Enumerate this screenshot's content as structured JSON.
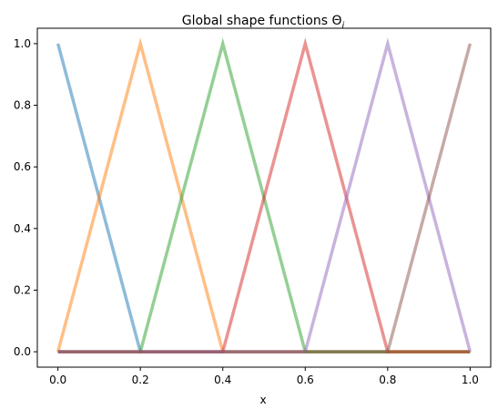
{
  "chart_data": {
    "type": "line",
    "title": "Global shape functions",
    "title_symbol": "Θ",
    "title_subscript": "i",
    "xlabel": "x",
    "ylabel": "",
    "xlim": [
      -0.05,
      1.05
    ],
    "ylim": [
      -0.05,
      1.05
    ],
    "x_ticks": [
      0.0,
      0.2,
      0.4,
      0.6,
      0.8,
      1.0
    ],
    "x_tick_labels": [
      "0.0",
      "0.2",
      "0.4",
      "0.6",
      "0.8",
      "1.0"
    ],
    "y_ticks": [
      0.0,
      0.2,
      0.4,
      0.6,
      0.8,
      1.0
    ],
    "y_tick_labels": [
      "0.0",
      "0.2",
      "0.4",
      "0.6",
      "0.8",
      "1.0"
    ],
    "grid": false,
    "legend": "none",
    "series": [
      {
        "color": "#1f77b4",
        "x": [
          0.0,
          0.2,
          1.0
        ],
        "y": [
          1.0,
          0.0,
          0.0
        ]
      },
      {
        "color": "#ff7f0e",
        "x": [
          0.0,
          0.2,
          0.4,
          1.0
        ],
        "y": [
          0.0,
          1.0,
          0.0,
          0.0
        ]
      },
      {
        "color": "#2ca02c",
        "x": [
          0.0,
          0.2,
          0.4,
          0.6,
          1.0
        ],
        "y": [
          0.0,
          0.0,
          1.0,
          0.0,
          0.0
        ]
      },
      {
        "color": "#d62728",
        "x": [
          0.0,
          0.4,
          0.6,
          0.8,
          1.0
        ],
        "y": [
          0.0,
          0.0,
          1.0,
          0.0,
          0.0
        ]
      },
      {
        "color": "#9467bd",
        "x": [
          0.0,
          0.6,
          0.8,
          1.0
        ],
        "y": [
          0.0,
          0.0,
          1.0,
          0.0
        ]
      },
      {
        "color": "#8c564b",
        "x": [
          0.0,
          0.8,
          1.0
        ],
        "y": [
          0.0,
          0.0,
          1.0
        ]
      }
    ]
  }
}
